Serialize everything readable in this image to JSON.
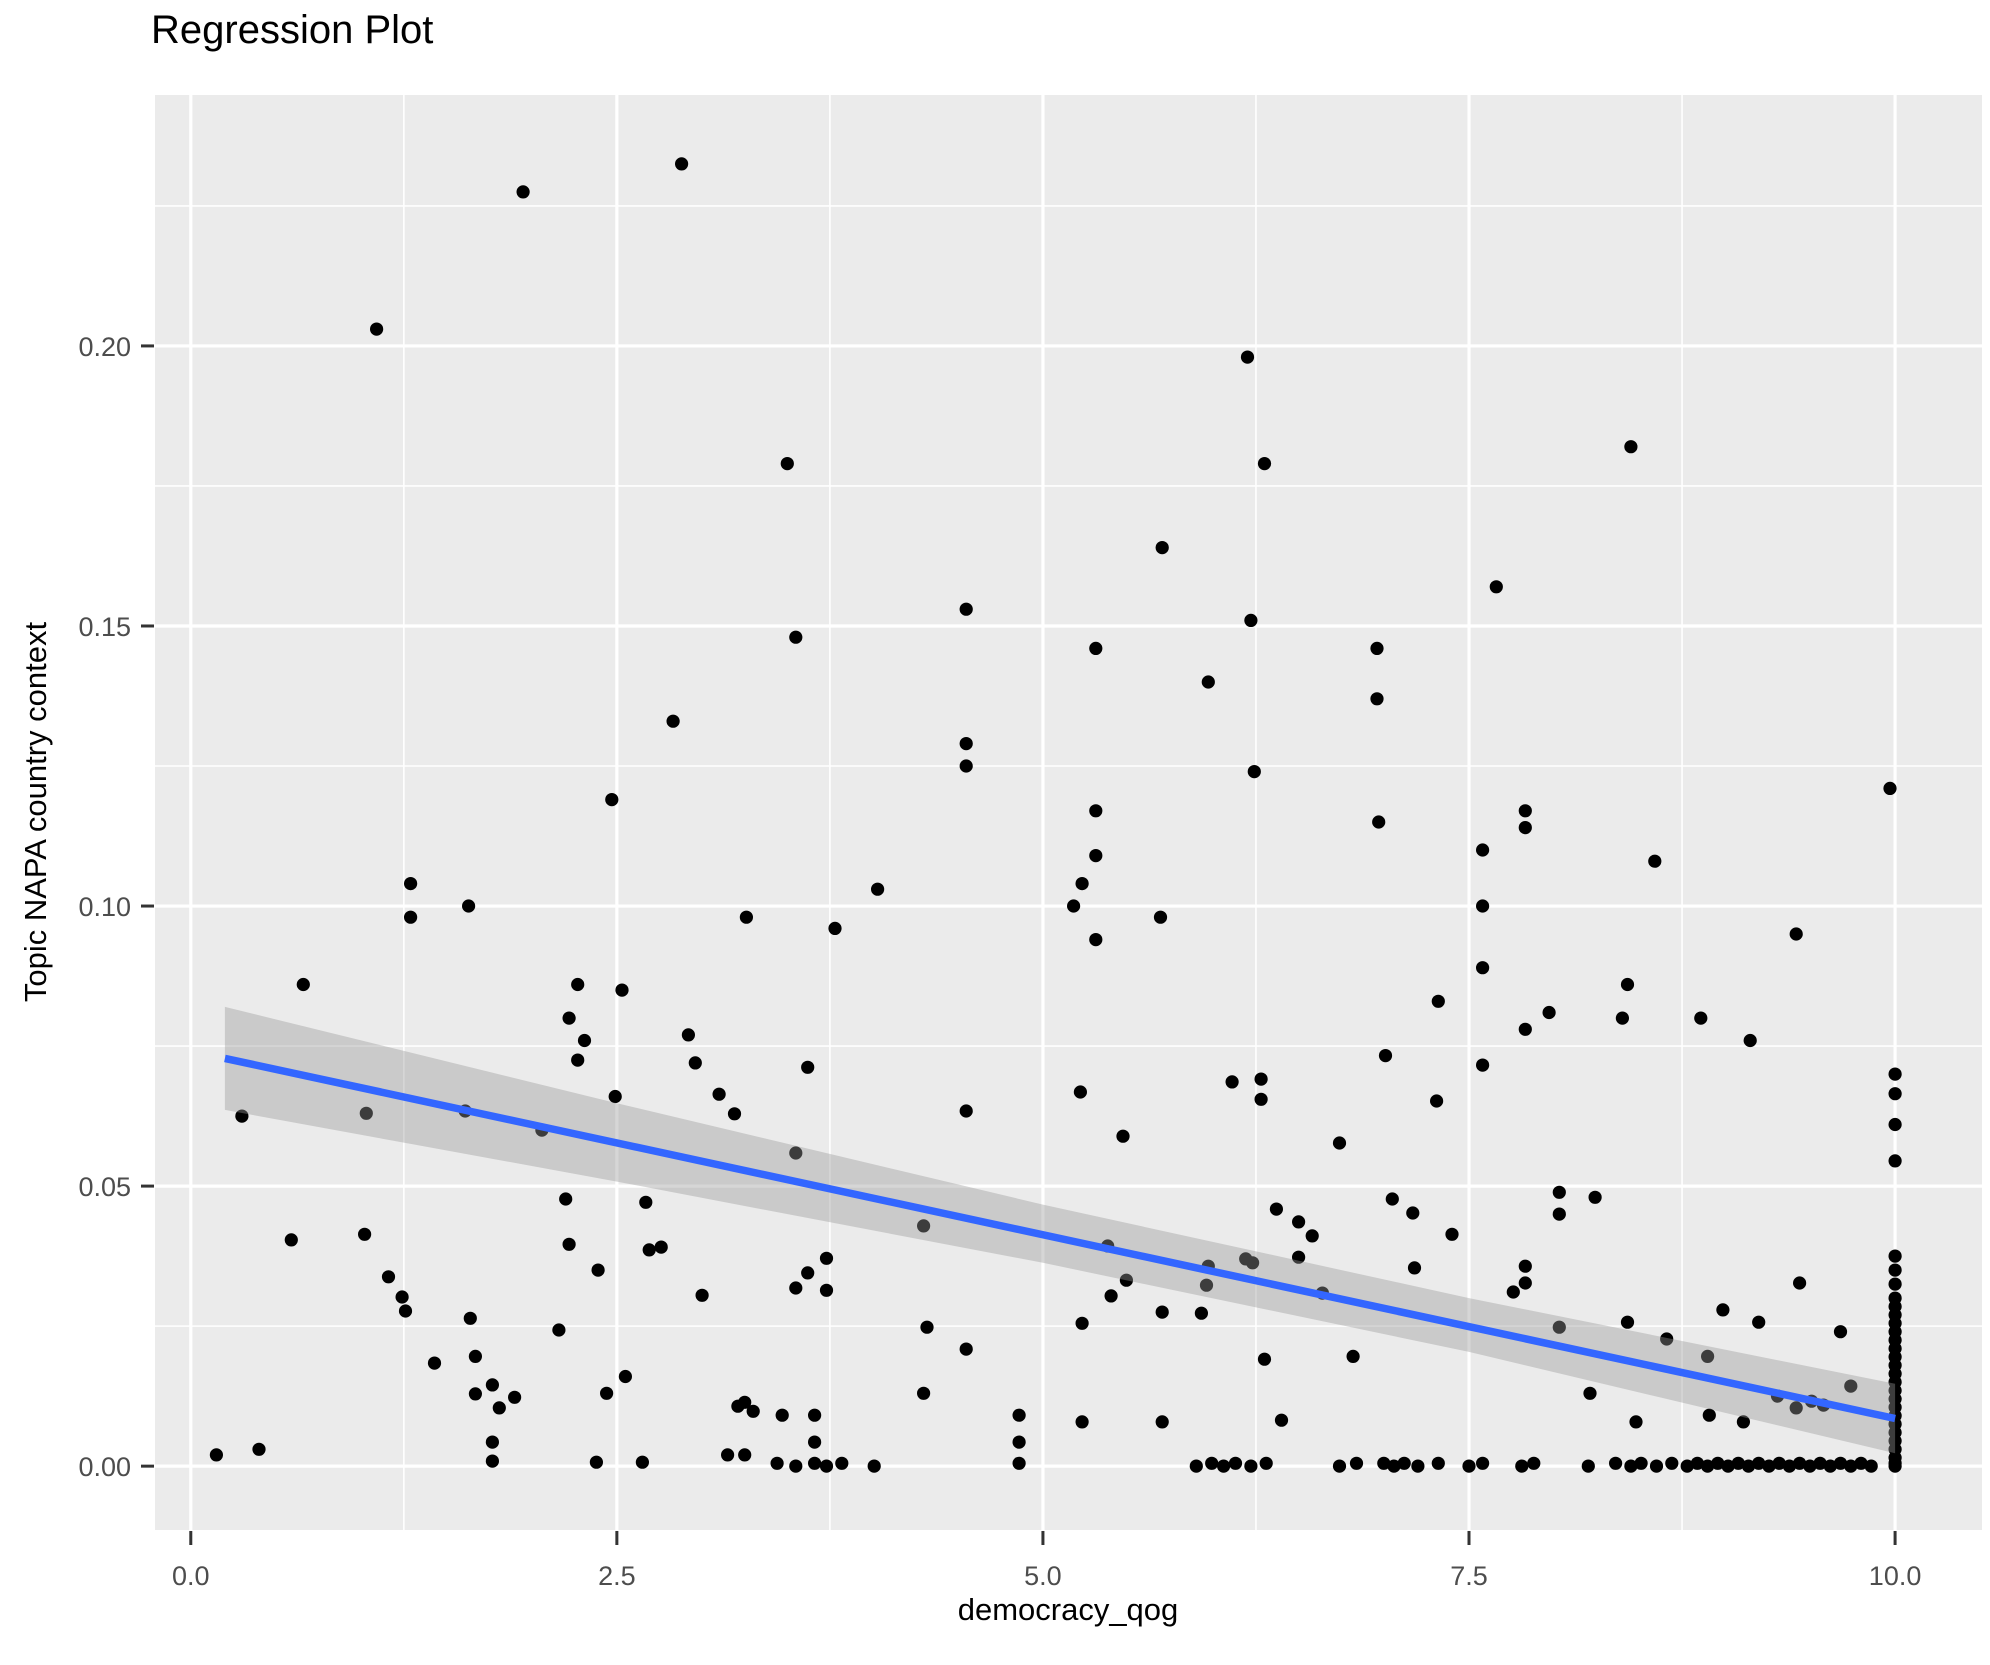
{
  "title": "Regression Plot",
  "chart_data": {
    "type": "scatter",
    "title": "Regression Plot",
    "xlabel": "democracy_qog",
    "ylabel": "Topic NAPA country context",
    "legend": "none",
    "grid": "on",
    "xlim": [
      -0.21,
      10.51
    ],
    "ylim": [
      -0.0114,
      0.2448
    ],
    "x_ticks": {
      "values": [
        0,
        2.5,
        5,
        7.5,
        10
      ],
      "labels": [
        "0.0",
        "2.5",
        "5.0",
        "7.5",
        "10.0"
      ]
    },
    "y_ticks": {
      "values": [
        0,
        0.05,
        0.1,
        0.15,
        0.2
      ],
      "labels": [
        "0.00",
        "0.05",
        "0.10",
        "0.15",
        "0.20"
      ]
    },
    "x_minor": [
      1.25,
      3.75,
      6.25,
      8.75
    ],
    "y_minor": [
      0.025,
      0.075,
      0.125,
      0.175,
      0.225
    ],
    "colors": {
      "panel_bg": "#EBEBEB",
      "grid": "#FFFFFF",
      "point": "#000000",
      "trend_line": "#3366FF",
      "ribbon": "#999999",
      "ribbon_alpha": 0.4,
      "tick_label": "#4D4D4D",
      "tick_mark": "#333333"
    },
    "trend_line": {
      "x": [
        0.2,
        10
      ],
      "y": [
        0.0728,
        0.0085
      ]
    },
    "ribbon": {
      "x": [
        0.2,
        2.5,
        5.0,
        7.5,
        10.0
      ],
      "upper": [
        0.082,
        0.0648,
        0.0467,
        0.03,
        0.0147
      ],
      "lower": [
        0.0636,
        0.0508,
        0.0363,
        0.0204,
        0.0023
      ]
    },
    "points": [
      [
        1.95,
        0.2275
      ],
      [
        2.88,
        0.2325
      ],
      [
        1.09,
        0.203
      ],
      [
        6.2,
        0.198
      ],
      [
        3.5,
        0.179
      ],
      [
        6.3,
        0.179
      ],
      [
        8.45,
        0.182
      ],
      [
        7.66,
        0.157
      ],
      [
        5.7,
        0.164
      ],
      [
        6.22,
        0.151
      ],
      [
        4.55,
        0.153
      ],
      [
        3.55,
        0.148
      ],
      [
        5.31,
        0.146
      ],
      [
        6.96,
        0.146
      ],
      [
        5.97,
        0.14
      ],
      [
        6.96,
        0.137
      ],
      [
        9.97,
        0.121
      ],
      [
        2.83,
        0.133
      ],
      [
        2.47,
        0.119
      ],
      [
        4.55,
        0.129
      ],
      [
        4.55,
        0.125
      ],
      [
        6.24,
        0.124
      ],
      [
        5.31,
        0.117
      ],
      [
        6.97,
        0.115
      ],
      [
        7.83,
        0.117
      ],
      [
        7.83,
        0.114
      ],
      [
        7.58,
        0.11
      ],
      [
        8.59,
        0.108
      ],
      [
        1.29,
        0.104
      ],
      [
        1.29,
        0.098
      ],
      [
        1.63,
        0.1
      ],
      [
        4.03,
        0.103
      ],
      [
        3.78,
        0.096
      ],
      [
        5.31,
        0.109
      ],
      [
        5.23,
        0.104
      ],
      [
        5.18,
        0.1
      ],
      [
        5.69,
        0.098
      ],
      [
        5.31,
        0.094
      ],
      [
        3.26,
        0.098
      ],
      [
        9.42,
        0.095
      ],
      [
        7.58,
        0.1
      ],
      [
        7.58,
        0.089
      ],
      [
        8.43,
        0.086
      ],
      [
        7.32,
        0.083
      ],
      [
        7.97,
        0.081
      ],
      [
        8.4,
        0.08
      ],
      [
        8.86,
        0.08
      ],
      [
        9.15,
        0.076
      ],
      [
        7.83,
        0.078
      ],
      [
        0.66,
        0.086
      ],
      [
        2.27,
        0.086
      ],
      [
        2.53,
        0.085
      ],
      [
        2.22,
        0.08
      ],
      [
        2.31,
        0.076
      ],
      [
        2.92,
        0.077
      ],
      [
        1.03,
        0.063
      ],
      [
        1.61,
        0.0634
      ],
      [
        2.06,
        0.06
      ],
      [
        2.27,
        0.0725
      ],
      [
        2.96,
        0.072
      ],
      [
        2.49,
        0.066
      ],
      [
        3.1,
        0.0664
      ],
      [
        3.19,
        0.0629
      ],
      [
        3.62,
        0.0712
      ],
      [
        5.22,
        0.0668
      ],
      [
        4.55,
        0.0634
      ],
      [
        6.11,
        0.0686
      ],
      [
        6.28,
        0.0691
      ],
      [
        6.28,
        0.0655
      ],
      [
        5.47,
        0.0589
      ],
      [
        3.55,
        0.0559
      ],
      [
        6.74,
        0.0577
      ],
      [
        7.01,
        0.0733
      ],
      [
        7.31,
        0.0652
      ],
      [
        7.58,
        0.0716
      ],
      [
        0.3,
        0.0625
      ],
      [
        2.2,
        0.0477
      ],
      [
        2.67,
        0.0471
      ],
      [
        1.02,
        0.0414
      ],
      [
        0.59,
        0.0404
      ],
      [
        2.22,
        0.0396
      ],
      [
        2.39,
        0.035
      ],
      [
        2.69,
        0.0386
      ],
      [
        2.76,
        0.0391
      ],
      [
        3.0,
        0.0305
      ],
      [
        4.3,
        0.0429
      ],
      [
        6.37,
        0.0459
      ],
      [
        6.5,
        0.0436
      ],
      [
        6.58,
        0.0411
      ],
      [
        8.03,
        0.0489
      ],
      [
        8.03,
        0.045
      ],
      [
        8.24,
        0.048
      ],
      [
        7.05,
        0.0477
      ],
      [
        7.17,
        0.0452
      ],
      [
        7.4,
        0.0414
      ],
      [
        7.18,
        0.0354
      ],
      [
        5.38,
        0.0393
      ],
      [
        3.73,
        0.0371
      ],
      [
        3.62,
        0.0345
      ],
      [
        3.55,
        0.0318
      ],
      [
        3.73,
        0.0314
      ],
      [
        5.97,
        0.0357
      ],
      [
        6.19,
        0.037
      ],
      [
        6.23,
        0.0363
      ],
      [
        6.5,
        0.0373
      ],
      [
        5.96,
        0.0323
      ],
      [
        9.44,
        0.0327
      ],
      [
        1.16,
        0.0338
      ],
      [
        1.24,
        0.0302
      ],
      [
        1.26,
        0.0277
      ],
      [
        1.64,
        0.0264
      ],
      [
        1.43,
        0.0184
      ],
      [
        1.67,
        0.0196
      ],
      [
        5.4,
        0.0304
      ],
      [
        5.23,
        0.0255
      ],
      [
        5.49,
        0.0332
      ],
      [
        5.7,
        0.0275
      ],
      [
        5.93,
        0.0273
      ],
      [
        6.64,
        0.0309
      ],
      [
        4.32,
        0.0248
      ],
      [
        4.55,
        0.0209
      ],
      [
        6.3,
        0.0191
      ],
      [
        6.82,
        0.0196
      ],
      [
        7.83,
        0.0357
      ],
      [
        7.83,
        0.0327
      ],
      [
        7.76,
        0.0311
      ],
      [
        8.43,
        0.0257
      ],
      [
        8.66,
        0.0227
      ],
      [
        8.99,
        0.0279
      ],
      [
        8.9,
        0.0196
      ],
      [
        9.2,
        0.0257
      ],
      [
        9.68,
        0.024
      ],
      [
        8.03,
        0.0248
      ],
      [
        2.16,
        0.0243
      ],
      [
        1.67,
        0.0129
      ],
      [
        1.9,
        0.0123
      ],
      [
        1.81,
        0.0104
      ],
      [
        2.44,
        0.013
      ],
      [
        2.55,
        0.016
      ],
      [
        3.21,
        0.0107
      ],
      [
        3.25,
        0.0114
      ],
      [
        3.3,
        0.0098
      ],
      [
        4.3,
        0.013
      ],
      [
        4.86,
        0.0091
      ],
      [
        4.86,
        0.0043
      ],
      [
        5.23,
        0.0079
      ],
      [
        3.47,
        0.0091
      ],
      [
        3.66,
        0.0091
      ],
      [
        3.66,
        0.0043
      ],
      [
        5.7,
        0.0079
      ],
      [
        6.4,
        0.0082
      ],
      [
        8.21,
        0.013
      ],
      [
        8.48,
        0.0079
      ],
      [
        8.91,
        0.0091
      ],
      [
        9.11,
        0.0079
      ],
      [
        9.31,
        0.0125
      ],
      [
        9.42,
        0.0104
      ],
      [
        9.51,
        0.0116
      ],
      [
        9.58,
        0.0109
      ],
      [
        9.74,
        0.0143
      ],
      [
        1.77,
        0.0145
      ],
      [
        0.15,
        0.002
      ],
      [
        0.4,
        0.003
      ],
      [
        1.77,
        0.0043
      ],
      [
        1.77,
        0.0009
      ],
      [
        2.38,
        0.0007
      ],
      [
        2.65,
        0.0007
      ],
      [
        3.15,
        0.002
      ],
      [
        3.25,
        0.002
      ],
      [
        3.44,
        0.0005
      ],
      [
        3.55,
        0.0
      ],
      [
        3.66,
        0.0005
      ],
      [
        3.73,
        0.0
      ],
      [
        3.82,
        0.0005
      ],
      [
        4.01,
        0.0
      ],
      [
        4.86,
        0.0005
      ],
      [
        5.9,
        0.0
      ],
      [
        5.99,
        0.0005
      ],
      [
        6.06,
        0.0
      ],
      [
        6.13,
        0.0005
      ],
      [
        6.22,
        0.0
      ],
      [
        6.31,
        0.0005
      ],
      [
        6.74,
        0.0
      ],
      [
        6.84,
        0.0005
      ],
      [
        7.0,
        0.0005
      ],
      [
        7.06,
        0.0
      ],
      [
        7.12,
        0.0005
      ],
      [
        7.2,
        0.0
      ],
      [
        7.32,
        0.0005
      ],
      [
        7.5,
        0.0
      ],
      [
        7.58,
        0.0005
      ],
      [
        7.81,
        0.0
      ],
      [
        7.88,
        0.0005
      ],
      [
        8.2,
        0.0
      ],
      [
        8.36,
        0.0005
      ],
      [
        8.45,
        0.0
      ],
      [
        8.51,
        0.0005
      ],
      [
        8.6,
        0.0
      ],
      [
        8.69,
        0.0005
      ],
      [
        8.78,
        0.0
      ],
      [
        8.84,
        0.0005
      ],
      [
        8.9,
        0.0
      ],
      [
        8.96,
        0.0005
      ],
      [
        9.02,
        0.0
      ],
      [
        9.08,
        0.0005
      ],
      [
        9.14,
        0.0
      ],
      [
        9.2,
        0.0005
      ],
      [
        9.26,
        0.0
      ],
      [
        9.32,
        0.0005
      ],
      [
        9.38,
        0.0
      ],
      [
        9.44,
        0.0005
      ],
      [
        9.5,
        0.0
      ],
      [
        9.56,
        0.0005
      ],
      [
        9.62,
        0.0
      ],
      [
        9.68,
        0.0005
      ],
      [
        9.74,
        0.0
      ],
      [
        9.8,
        0.0005
      ],
      [
        9.86,
        0.0
      ],
      [
        10,
        0.07
      ],
      [
        10,
        0.0665
      ],
      [
        10,
        0.061
      ],
      [
        10,
        0.0545
      ],
      [
        10,
        0.0375
      ],
      [
        10,
        0.035
      ],
      [
        10,
        0.0325
      ],
      [
        10,
        0.03
      ],
      [
        10,
        0.0285
      ],
      [
        10,
        0.027
      ],
      [
        10,
        0.0255
      ],
      [
        10,
        0.024
      ],
      [
        10,
        0.0225
      ],
      [
        10,
        0.021
      ],
      [
        10,
        0.0195
      ],
      [
        10,
        0.018
      ],
      [
        10,
        0.0165
      ],
      [
        10,
        0.015
      ],
      [
        10,
        0.0135
      ],
      [
        10,
        0.012
      ],
      [
        10,
        0.0105
      ],
      [
        10,
        0.009
      ],
      [
        10,
        0.0075
      ],
      [
        10,
        0.006
      ],
      [
        10,
        0.0045
      ],
      [
        10,
        0.003
      ],
      [
        10,
        0.0015
      ],
      [
        10,
        0.0005
      ],
      [
        10,
        0.0
      ]
    ]
  }
}
